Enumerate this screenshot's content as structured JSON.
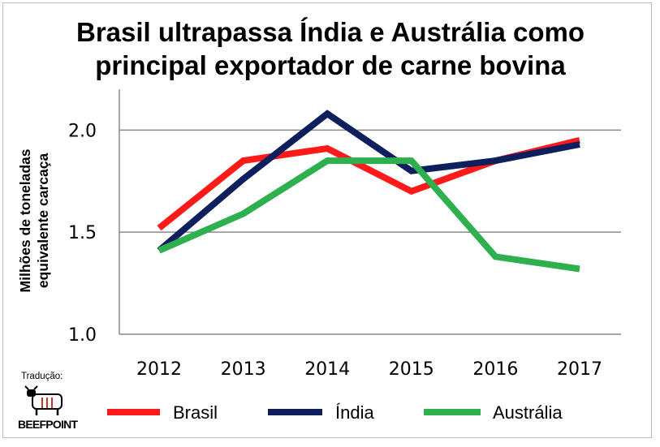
{
  "chart_data": {
    "type": "line",
    "title_lines": [
      "Brasil ultrapassa Índia e Austrália como",
      "principal exportador de carne bovina"
    ],
    "ylabel_lines": [
      "Milhões de toneladas",
      "equivalente carcaça"
    ],
    "xlabel": "",
    "categories": [
      "2012",
      "2013",
      "2014",
      "2015",
      "2016",
      "2017"
    ],
    "ylim": [
      1.0,
      2.2
    ],
    "yticks": [
      1.0,
      1.5,
      2.0
    ],
    "ytick_labels": [
      "1.0",
      "1.5",
      "2.0"
    ],
    "grid": true,
    "legend_position": "bottom",
    "series": [
      {
        "name": "Brasil",
        "color": "#ff1a1a",
        "values": [
          1.52,
          1.85,
          1.91,
          1.7,
          1.85,
          1.95
        ]
      },
      {
        "name": "Índia",
        "color": "#0d1f5c",
        "values": [
          1.41,
          1.76,
          2.08,
          1.8,
          1.85,
          1.93
        ]
      },
      {
        "name": "Austrália",
        "color": "#2eb04f",
        "values": [
          1.41,
          1.59,
          1.85,
          1.85,
          1.38,
          1.32
        ]
      }
    ]
  },
  "credit": {
    "label": "Tradução:",
    "logo_text": "BEEFPOINT",
    "logo_icon": "cattle-logo-icon"
  }
}
